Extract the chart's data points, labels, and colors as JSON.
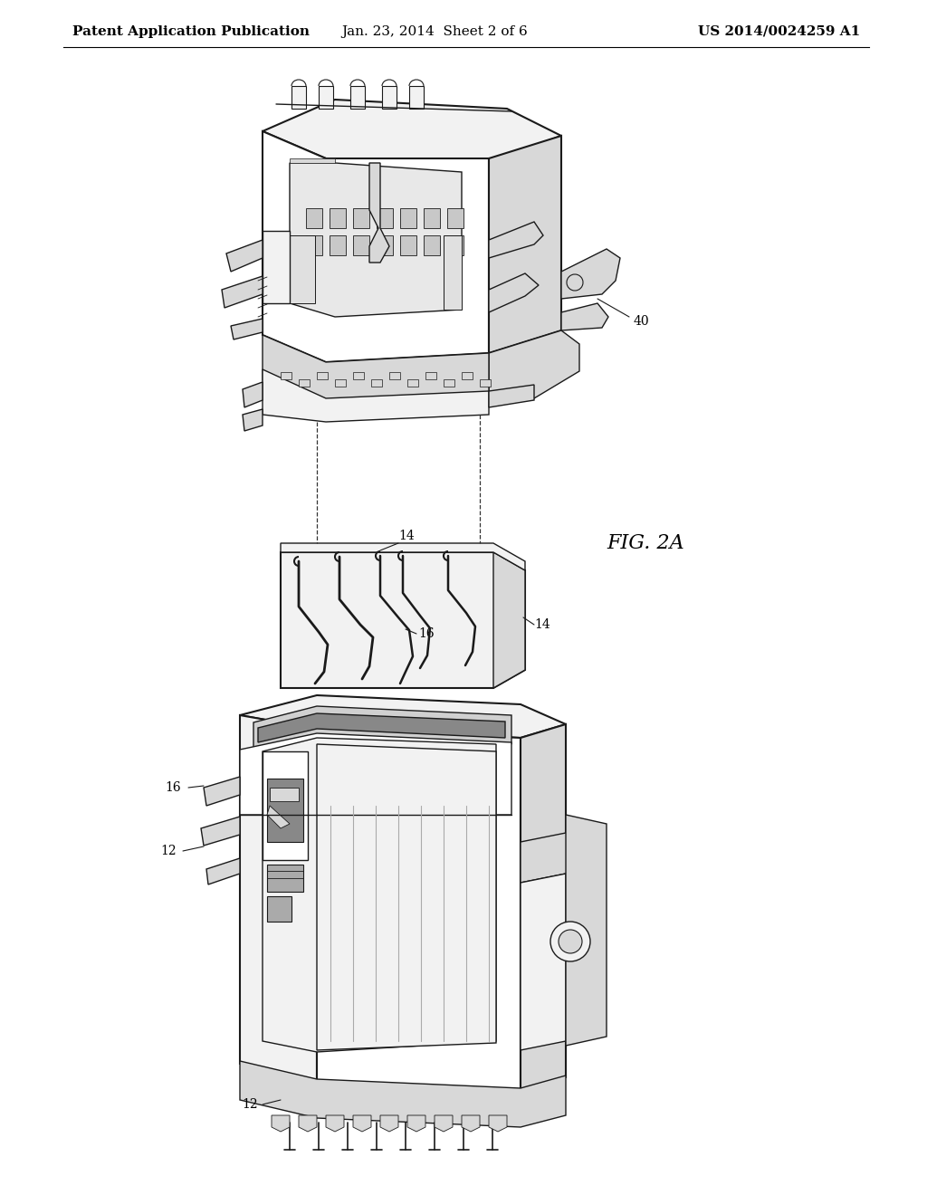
{
  "background_color": "#ffffff",
  "header_left": "Patent Application Publication",
  "header_center": "Jan. 23, 2014  Sheet 2 of 6",
  "header_right": "US 2014/0024259 A1",
  "header_fontsize": 11,
  "fig_label": "FIG. 2A",
  "fig_label_fontsize": 16,
  "line_color": "#1a1a1a",
  "fill_light": "#f2f2f2",
  "fill_mid": "#d8d8d8",
  "fill_dark": "#b0b0b0",
  "fill_white": "#ffffff"
}
